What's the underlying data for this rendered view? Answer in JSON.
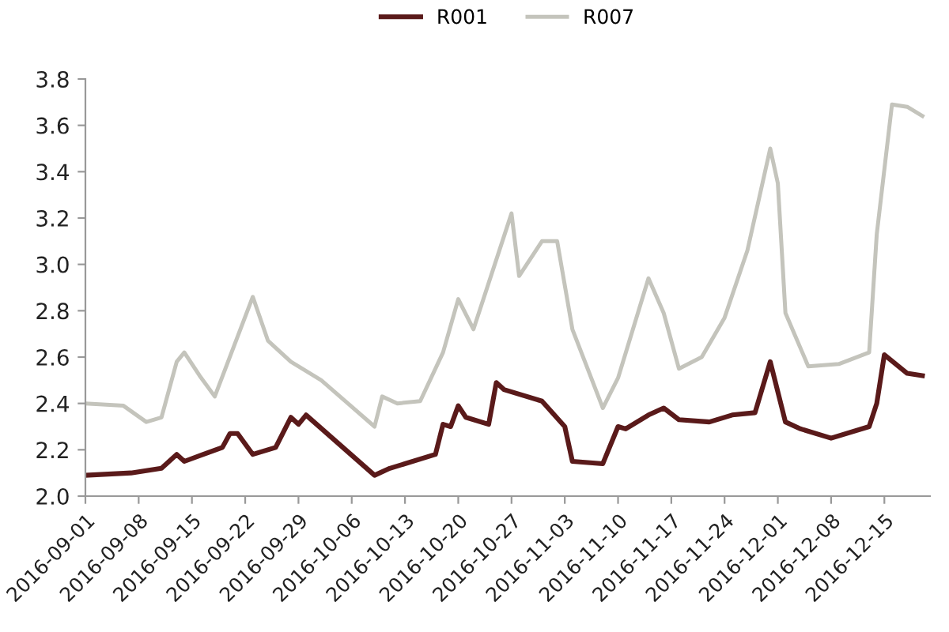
{
  "chart_data": {
    "type": "line",
    "legend": "top",
    "grid": false,
    "marker": "none",
    "line_style": "solid",
    "xlim": [
      "2016-09-01",
      "2016-12-21"
    ],
    "xticks": [
      "2016-09-01",
      "2016-09-08",
      "2016-09-15",
      "2016-09-22",
      "2016-09-29",
      "2016-10-06",
      "2016-10-13",
      "2016-10-20",
      "2016-10-27",
      "2016-11-03",
      "2016-11-10",
      "2016-11-17",
      "2016-11-24",
      "2016-12-01",
      "2016-12-08",
      "2016-12-15"
    ],
    "ylim": [
      2.0,
      3.8
    ],
    "yticks": [
      {
        "value": 2.0,
        "label": "2.0"
      },
      {
        "value": 2.2,
        "label": "2.2"
      },
      {
        "value": 2.4,
        "label": "2.4"
      },
      {
        "value": 2.6,
        "label": "2.6"
      },
      {
        "value": 2.8,
        "label": "2.8"
      },
      {
        "value": 3.0,
        "label": "3.0"
      },
      {
        "value": 3.2,
        "label": "3.2"
      },
      {
        "value": 3.4,
        "label": "3.4"
      },
      {
        "value": 3.6,
        "label": "3.6"
      },
      {
        "value": 3.8,
        "label": "3.8"
      }
    ],
    "series": [
      {
        "name": "R001",
        "color": "#5a1a1a",
        "x": [
          "2016-09-01",
          "2016-09-07",
          "2016-09-11",
          "2016-09-13",
          "2016-09-14",
          "2016-09-19",
          "2016-09-20",
          "2016-09-21",
          "2016-09-23",
          "2016-09-26",
          "2016-09-28",
          "2016-09-29",
          "2016-09-30",
          "2016-10-09",
          "2016-10-11",
          "2016-10-17",
          "2016-10-18",
          "2016-10-19",
          "2016-10-20",
          "2016-10-21",
          "2016-10-24",
          "2016-10-25",
          "2016-10-26",
          "2016-10-31",
          "2016-11-03",
          "2016-11-04",
          "2016-11-08",
          "2016-11-10",
          "2016-11-11",
          "2016-11-14",
          "2016-11-16",
          "2016-11-18",
          "2016-11-22",
          "2016-11-25",
          "2016-11-28",
          "2016-11-30",
          "2016-12-02",
          "2016-12-04",
          "2016-12-08",
          "2016-12-13",
          "2016-12-14",
          "2016-12-15",
          "2016-12-18",
          "2016-12-20"
        ],
        "values": [
          2.09,
          2.1,
          2.12,
          2.18,
          2.15,
          2.21,
          2.27,
          2.27,
          2.18,
          2.21,
          2.34,
          2.31,
          2.35,
          2.09,
          2.12,
          2.18,
          2.31,
          2.3,
          2.39,
          2.34,
          2.31,
          2.49,
          2.46,
          2.41,
          2.3,
          2.15,
          2.14,
          2.3,
          2.29,
          2.35,
          2.38,
          2.33,
          2.32,
          2.35,
          2.36,
          2.58,
          2.32,
          2.29,
          2.25,
          2.3,
          2.4,
          2.61,
          2.53,
          2.52
        ]
      },
      {
        "name": "R007",
        "color": "#c4c4bc",
        "x": [
          "2016-09-01",
          "2016-09-06",
          "2016-09-09",
          "2016-09-11",
          "2016-09-13",
          "2016-09-14",
          "2016-09-16",
          "2016-09-18",
          "2016-09-23",
          "2016-09-25",
          "2016-09-28",
          "2016-10-02",
          "2016-10-09",
          "2016-10-10",
          "2016-10-12",
          "2016-10-15",
          "2016-10-18",
          "2016-10-20",
          "2016-10-22",
          "2016-10-27",
          "2016-10-28",
          "2016-10-31",
          "2016-11-02",
          "2016-11-04",
          "2016-11-06",
          "2016-11-08",
          "2016-11-10",
          "2016-11-14",
          "2016-11-16",
          "2016-11-18",
          "2016-11-21",
          "2016-11-24",
          "2016-11-27",
          "2016-11-30",
          "2016-12-01",
          "2016-12-02",
          "2016-12-05",
          "2016-12-09",
          "2016-12-13",
          "2016-12-14",
          "2016-12-16",
          "2016-12-18",
          "2016-12-20"
        ],
        "values": [
          2.4,
          2.39,
          2.32,
          2.34,
          2.58,
          2.62,
          2.52,
          2.43,
          2.86,
          2.67,
          2.58,
          2.5,
          2.3,
          2.43,
          2.4,
          2.41,
          2.62,
          2.85,
          2.72,
          3.22,
          2.95,
          3.1,
          3.1,
          2.72,
          2.55,
          2.38,
          2.51,
          2.94,
          2.79,
          2.55,
          2.6,
          2.77,
          3.06,
          3.5,
          3.35,
          2.79,
          2.56,
          2.57,
          2.62,
          3.13,
          3.69,
          3.68,
          3.64
        ]
      }
    ]
  }
}
